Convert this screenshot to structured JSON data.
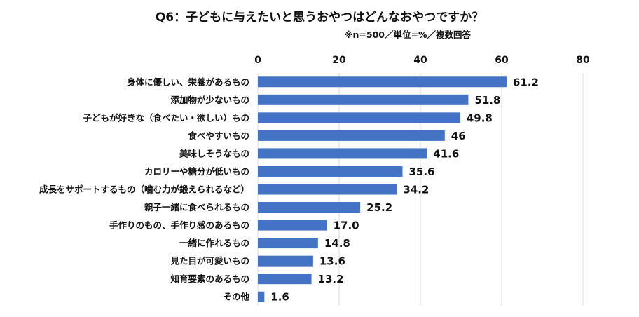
{
  "chart_data": {
    "type": "bar",
    "orientation": "horizontal",
    "title": "Q6：子どもに与えたいと思うおやつはどんなおやつですか？",
    "subtitle": "※n=500／単位=%／複数回答",
    "categories": [
      "身体に優しい、栄養があるもの",
      "添加物が少ないもの",
      "子どもが好きな（食べたい・欲しい）もの",
      "食べやすいもの",
      "美味しそうなもの",
      "カロリーや糖分が低いもの",
      "成長をサポートするもの（噛む力が鍛えられるなど）",
      "親子一緒に食べられるもの",
      "手作りのもの、手作り感のあるもの",
      "一緒に作れるもの",
      "見た目が可愛いもの",
      "知育要素のあるもの",
      "その他"
    ],
    "values": [
      61.2,
      51.8,
      49.8,
      46,
      41.6,
      35.6,
      34.2,
      25.2,
      17.0,
      14.8,
      13.6,
      13.2,
      1.6
    ],
    "value_labels": [
      "61.2",
      "51.8",
      "49.8",
      "46",
      "41.6",
      "35.6",
      "34.2",
      "25.2",
      "17.0",
      "14.8",
      "13.6",
      "13.2",
      "1.6"
    ],
    "xlim": [
      0,
      80
    ],
    "xticks": [
      0,
      20,
      40,
      60,
      80
    ],
    "xtick_labels": [
      "0",
      "20",
      "40",
      "60",
      "80"
    ],
    "grid": true,
    "bar_color": "#4472C4"
  }
}
